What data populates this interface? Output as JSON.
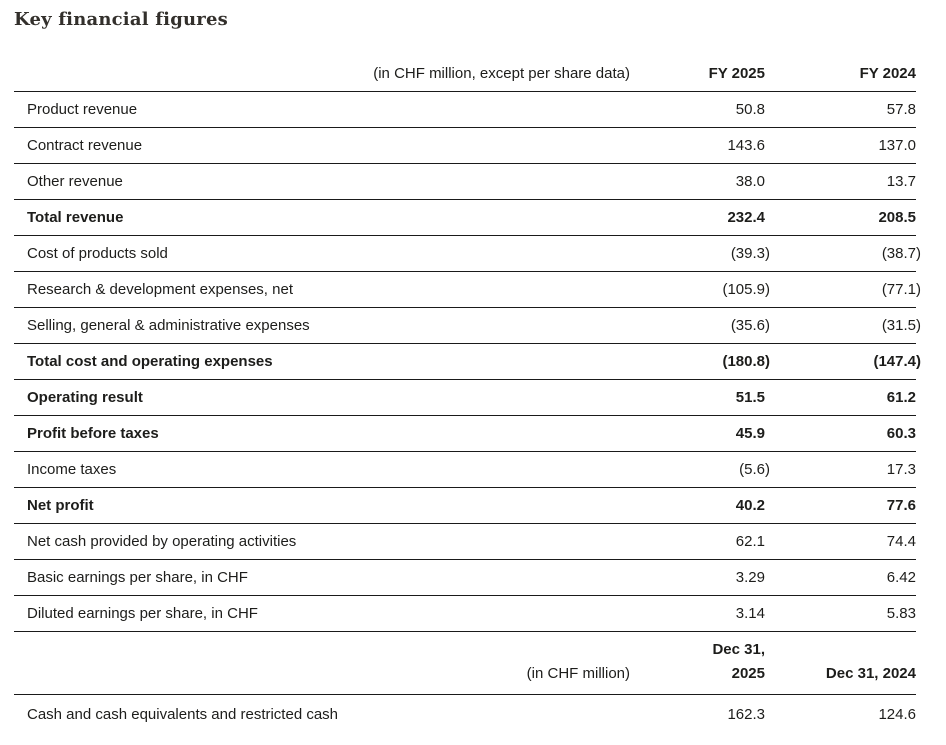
{
  "page": {
    "title": "Key financial figures"
  },
  "colors": {
    "background": "#ffffff",
    "text": "#1d1d1b",
    "title_text": "#33302c",
    "rule_line": "#1a1a1a"
  },
  "table": {
    "header": {
      "unit_label": "(in CHF million, except per share data)",
      "col1": "FY 2025",
      "col2": "FY 2024"
    },
    "rows": [
      {
        "label": "Product revenue",
        "col1": "50.8",
        "col2": "57.8",
        "indent": true,
        "bold": false
      },
      {
        "label": "Contract revenue",
        "col1": "143.6",
        "col2": "137.0",
        "indent": true,
        "bold": false
      },
      {
        "label": "Other revenue",
        "col1": "38.0",
        "col2": "13.7",
        "indent": true,
        "bold": false
      },
      {
        "label": "Total revenue",
        "col1": "232.4",
        "col2": "208.5",
        "indent": false,
        "bold": true
      },
      {
        "label": "Cost of products sold",
        "col1": "(39.3)",
        "col2": "(38.7)",
        "indent": true,
        "bold": false
      },
      {
        "label": "Research & development expenses, net",
        "col1": "(105.9)",
        "col2": "(77.1)",
        "indent": true,
        "bold": false
      },
      {
        "label": "Selling, general & administrative expenses",
        "col1": "(35.6)",
        "col2": "(31.5)",
        "indent": true,
        "bold": false
      },
      {
        "label": "Total cost and operating expenses",
        "col1": "(180.8)",
        "col2": "(147.4)",
        "indent": false,
        "bold": true
      },
      {
        "label": "Operating result",
        "col1": "51.5",
        "col2": "61.2",
        "indent": false,
        "bold": true
      },
      {
        "label": "Profit before taxes",
        "col1": "45.9",
        "col2": "60.3",
        "indent": false,
        "bold": true
      },
      {
        "label": "Income taxes",
        "col1": "(5.6)",
        "col2": "17.3",
        "indent": true,
        "bold": false
      },
      {
        "label": "Net profit",
        "col1": "40.2",
        "col2": "77.6",
        "indent": false,
        "bold": true
      },
      {
        "label": "Net cash provided by operating activities",
        "col1": "62.1",
        "col2": "74.4",
        "indent": false,
        "bold": false
      },
      {
        "label": "Basic earnings per share, in CHF",
        "col1": "3.29",
        "col2": "6.42",
        "indent": false,
        "bold": false
      },
      {
        "label": "Diluted earnings per share, in CHF",
        "col1": "3.14",
        "col2": "5.83",
        "indent": false,
        "bold": false
      }
    ],
    "second_header": {
      "unit_label": "(in CHF million)",
      "col1": "Dec 31,\n2025",
      "col2": "Dec 31, 2024"
    },
    "balance_rows": [
      {
        "label": "Cash and cash equivalents and restricted cash",
        "col1": "162.3",
        "col2": "124.6",
        "indent": false,
        "bold": false
      }
    ]
  }
}
